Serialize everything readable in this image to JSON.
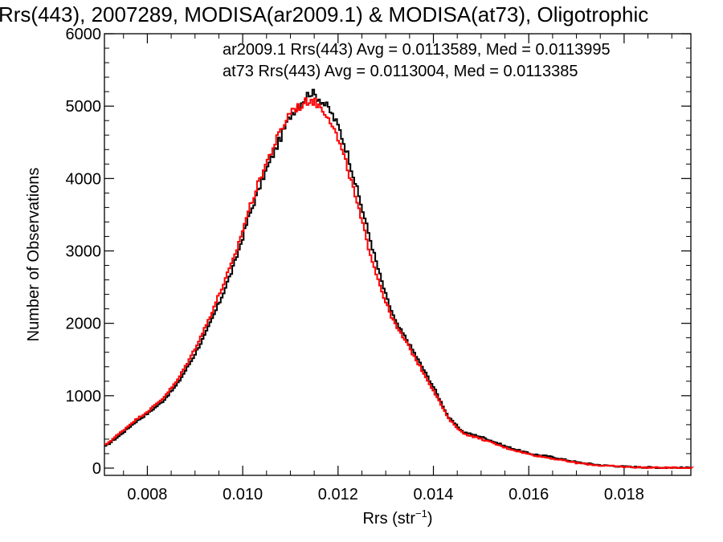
{
  "chart_data": {
    "type": "histogram-step",
    "title": "Rrs(443), 2007289, MODISA(ar2009.1) & MODISA(at73), Oligotrophic",
    "xlabel_main": "Rrs (str",
    "xlabel_sup": "−1",
    "xlabel_close": ")",
    "ylabel": "Number of Observations",
    "xlim": [
      0.0071,
      0.0194
    ],
    "ylim": [
      -100,
      6000
    ],
    "xticks": [
      {
        "value": 0.008,
        "label": "0.008"
      },
      {
        "value": 0.01,
        "label": "0.010"
      },
      {
        "value": 0.012,
        "label": "0.012"
      },
      {
        "value": 0.014,
        "label": "0.014"
      },
      {
        "value": 0.016,
        "label": "0.016"
      },
      {
        "value": 0.018,
        "label": "0.018"
      }
    ],
    "yticks": [
      {
        "value": 0,
        "label": "0"
      },
      {
        "value": 1000,
        "label": "1000"
      },
      {
        "value": 2000,
        "label": "2000"
      },
      {
        "value": 3000,
        "label": "3000"
      },
      {
        "value": 4000,
        "label": "4000"
      },
      {
        "value": 5000,
        "label": "5000"
      },
      {
        "value": 6000,
        "label": "6000"
      }
    ],
    "annotations": [
      {
        "text": "ar2009.1 Rrs(443) Avg = 0.0113589, Med = 0.0113995",
        "color": "#000000"
      },
      {
        "text": "at73 Rrs(443) Avg = 0.0113004, Med = 0.0113385",
        "color": "#ff0000"
      }
    ],
    "series": [
      {
        "color": "#000000",
        "x": [
          0.0071,
          0.0074,
          0.0077,
          0.008,
          0.0083,
          0.0086,
          0.0089,
          0.0092,
          0.0095,
          0.0098,
          0.0101,
          0.0104,
          0.0107,
          0.011,
          0.0112,
          0.0114,
          0.0116,
          0.0118,
          0.012,
          0.0122,
          0.0124,
          0.0126,
          0.0128,
          0.013,
          0.0132,
          0.0134,
          0.0137,
          0.014,
          0.0143,
          0.0146,
          0.015,
          0.0155,
          0.016,
          0.0165,
          0.017,
          0.0175,
          0.018,
          0.0185,
          0.019,
          0.0194
        ],
        "y": [
          300,
          450,
          620,
          760,
          920,
          1150,
          1480,
          1850,
          2300,
          2800,
          3450,
          4000,
          4450,
          4900,
          5050,
          5200,
          5100,
          4950,
          4700,
          4300,
          3800,
          3300,
          2800,
          2350,
          2000,
          1800,
          1450,
          1100,
          700,
          500,
          430,
          300,
          200,
          150,
          80,
          40,
          20,
          10,
          5,
          5
        ]
      },
      {
        "color": "#ff0000",
        "x": [
          0.0071,
          0.0074,
          0.0077,
          0.008,
          0.0083,
          0.0086,
          0.0089,
          0.0092,
          0.0095,
          0.0098,
          0.0101,
          0.0104,
          0.0107,
          0.011,
          0.0112,
          0.0114,
          0.0116,
          0.0118,
          0.012,
          0.0122,
          0.0124,
          0.0126,
          0.0128,
          0.013,
          0.0132,
          0.0134,
          0.0137,
          0.014,
          0.0143,
          0.0146,
          0.015,
          0.0155,
          0.016,
          0.0165,
          0.017,
          0.0175,
          0.018,
          0.0185,
          0.019,
          0.0194
        ],
        "y": [
          320,
          480,
          650,
          790,
          960,
          1200,
          1550,
          1950,
          2420,
          2900,
          3550,
          4100,
          4550,
          4950,
          5000,
          5100,
          5000,
          4850,
          4500,
          4100,
          3600,
          3100,
          2650,
          2250,
          1950,
          1750,
          1400,
          1050,
          680,
          480,
          400,
          280,
          190,
          130,
          70,
          35,
          18,
          8,
          4,
          4
        ]
      }
    ]
  }
}
